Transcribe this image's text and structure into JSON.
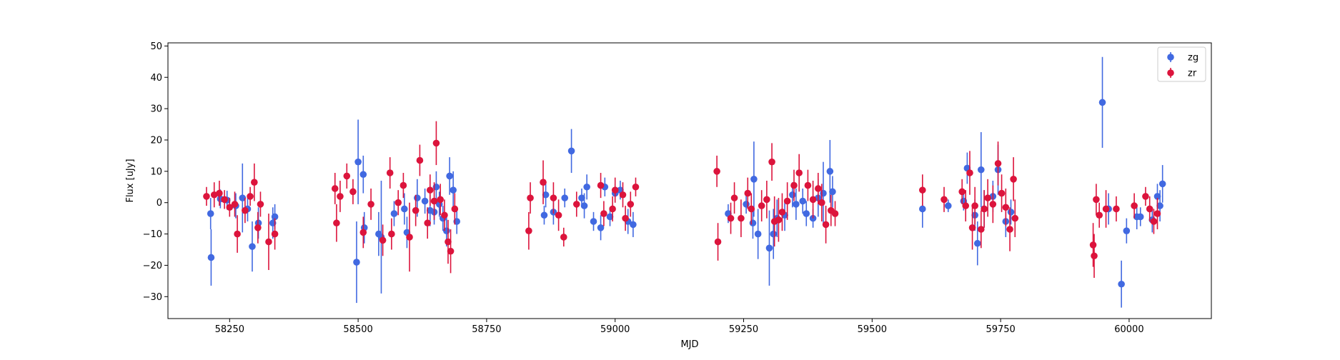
{
  "chart_data": {
    "type": "scatter",
    "title": "",
    "xlabel": "MJD",
    "ylabel": "Flux [uJy]",
    "xlim": [
      58130,
      60160
    ],
    "ylim": [
      -37,
      51
    ],
    "xticks": [
      58250,
      58500,
      58750,
      59000,
      59250,
      59500,
      59750,
      60000
    ],
    "yticks": [
      -30,
      -20,
      -10,
      0,
      10,
      20,
      30,
      40,
      50
    ],
    "grid": false,
    "legend_position": "top-right",
    "error_bars": true,
    "series": [
      {
        "name": "zg",
        "color": "#4169e1",
        "points": [
          [
            58213,
            -3.5,
            5
          ],
          [
            58214,
            -17.5,
            9
          ],
          [
            58232,
            1.2,
            3
          ],
          [
            58245,
            0.8,
            3
          ],
          [
            58262,
            -1.0,
            4
          ],
          [
            58275,
            1.5,
            11
          ],
          [
            58285,
            -2.0,
            4
          ],
          [
            58294,
            -14.0,
            8
          ],
          [
            58306,
            -6.5,
            5
          ],
          [
            58334,
            -6.5,
            5
          ],
          [
            58338,
            -4.5,
            4
          ],
          [
            58497,
            -19.0,
            13
          ],
          [
            58500,
            13.0,
            13.5
          ],
          [
            58510,
            9.0,
            6
          ],
          [
            58512,
            -8.0,
            5
          ],
          [
            58540,
            -10.0,
            7
          ],
          [
            58545,
            -11.0,
            18
          ],
          [
            58570,
            -3.5,
            4
          ],
          [
            58590,
            -2.0,
            5
          ],
          [
            58595,
            -9.5,
            5
          ],
          [
            58615,
            1.5,
            6
          ],
          [
            58630,
            0.5,
            4
          ],
          [
            58640,
            -2.5,
            5
          ],
          [
            58648,
            -3.0,
            4
          ],
          [
            58652,
            5.0,
            5
          ],
          [
            58658,
            -0.5,
            4
          ],
          [
            58665,
            -5.0,
            4
          ],
          [
            58672,
            -9.0,
            5
          ],
          [
            58678,
            8.5,
            6
          ],
          [
            58685,
            4.0,
            6
          ],
          [
            58692,
            -6.0,
            4
          ],
          [
            58862,
            -4.0,
            3
          ],
          [
            58865,
            2.5,
            4
          ],
          [
            58880,
            -3.0,
            4
          ],
          [
            58902,
            1.5,
            3
          ],
          [
            58915,
            16.5,
            7
          ],
          [
            58935,
            1.5,
            3
          ],
          [
            58940,
            -1.0,
            4
          ],
          [
            58945,
            5.0,
            4
          ],
          [
            58958,
            -6.0,
            3
          ],
          [
            58972,
            -8.0,
            4
          ],
          [
            58980,
            5.0,
            3
          ],
          [
            58990,
            -4.5,
            3
          ],
          [
            59000,
            3.0,
            3
          ],
          [
            59010,
            4.0,
            3
          ],
          [
            59025,
            -6.0,
            4
          ],
          [
            59035,
            -7.0,
            4
          ],
          [
            59220,
            -3.5,
            3
          ],
          [
            59255,
            -0.5,
            3
          ],
          [
            59268,
            -6.5,
            5
          ],
          [
            59270,
            7.5,
            12
          ],
          [
            59278,
            -10.0,
            8
          ],
          [
            59300,
            -14.5,
            12
          ],
          [
            59308,
            -10.0,
            8
          ],
          [
            59315,
            -5.0,
            6
          ],
          [
            59330,
            -4.0,
            5
          ],
          [
            59345,
            2.5,
            4
          ],
          [
            59352,
            -0.5,
            5
          ],
          [
            59365,
            0.5,
            4
          ],
          [
            59372,
            -3.5,
            4
          ],
          [
            59385,
            -5.0,
            3
          ],
          [
            59395,
            1.5,
            6
          ],
          [
            59405,
            3.0,
            10
          ],
          [
            59418,
            10.0,
            10
          ],
          [
            59423,
            3.5,
            5
          ],
          [
            59598,
            -2.0,
            6
          ],
          [
            59648,
            -1.0,
            2
          ],
          [
            59678,
            0.5,
            3
          ],
          [
            59685,
            11.0,
            5
          ],
          [
            59700,
            -4.0,
            5
          ],
          [
            59705,
            -13.0,
            7
          ],
          [
            59712,
            10.5,
            12
          ],
          [
            59718,
            -2.0,
            6
          ],
          [
            59735,
            2.0,
            5
          ],
          [
            59745,
            10.5,
            8
          ],
          [
            59760,
            -6.0,
            5
          ],
          [
            59770,
            -3.0,
            4
          ],
          [
            59948,
            32.0,
            14.5
          ],
          [
            59960,
            -2.0,
            5
          ],
          [
            59985,
            -26.0,
            7.5
          ],
          [
            59995,
            -9.0,
            4
          ],
          [
            60015,
            -4.5,
            4
          ],
          [
            60022,
            -4.5,
            3
          ],
          [
            60045,
            -5.5,
            4
          ],
          [
            60055,
            2.0,
            4
          ],
          [
            60060,
            -1.0,
            5
          ],
          [
            60065,
            6.0,
            6
          ]
        ]
      },
      {
        "name": "zr",
        "color": "#dc143c",
        "points": [
          [
            58205,
            2.0,
            3
          ],
          [
            58220,
            2.5,
            4
          ],
          [
            58230,
            3.0,
            4
          ],
          [
            58240,
            1.0,
            3
          ],
          [
            58250,
            -1.5,
            3
          ],
          [
            58260,
            -0.5,
            4
          ],
          [
            58265,
            -10.0,
            6
          ],
          [
            58280,
            -2.5,
            4
          ],
          [
            58290,
            2.0,
            3
          ],
          [
            58298,
            6.5,
            6
          ],
          [
            58305,
            -8.0,
            5
          ],
          [
            58310,
            -0.5,
            4
          ],
          [
            58326,
            -12.5,
            9
          ],
          [
            58338,
            -10.0,
            5
          ],
          [
            58455,
            4.5,
            5
          ],
          [
            58458,
            -6.5,
            6
          ],
          [
            58465,
            2.0,
            5
          ],
          [
            58478,
            8.5,
            4
          ],
          [
            58490,
            3.5,
            4
          ],
          [
            58510,
            -9.5,
            5
          ],
          [
            58525,
            -0.5,
            5
          ],
          [
            58548,
            -12.0,
            5
          ],
          [
            58562,
            9.5,
            5
          ],
          [
            58565,
            -10.0,
            5
          ],
          [
            58578,
            0.0,
            4
          ],
          [
            58588,
            5.5,
            4
          ],
          [
            58600,
            -11.0,
            11
          ],
          [
            58612,
            -2.5,
            5
          ],
          [
            58620,
            13.5,
            5
          ],
          [
            58635,
            -6.5,
            5
          ],
          [
            58640,
            4.0,
            5
          ],
          [
            58648,
            0.5,
            6
          ],
          [
            58652,
            19.0,
            7
          ],
          [
            58660,
            1.0,
            5
          ],
          [
            58668,
            -4.0,
            5
          ],
          [
            58675,
            -12.5,
            7
          ],
          [
            58680,
            -15.5,
            7
          ],
          [
            58688,
            -2.0,
            5
          ],
          [
            58832,
            -9.0,
            6
          ],
          [
            58835,
            1.5,
            5
          ],
          [
            58860,
            6.5,
            7
          ],
          [
            58880,
            1.5,
            5
          ],
          [
            58890,
            -4.0,
            5
          ],
          [
            58900,
            -11.0,
            3
          ],
          [
            58925,
            -0.5,
            4
          ],
          [
            58972,
            5.5,
            4
          ],
          [
            58978,
            -3.5,
            4
          ],
          [
            58995,
            -2.0,
            4
          ],
          [
            59000,
            4.0,
            4
          ],
          [
            59015,
            2.5,
            4
          ],
          [
            59020,
            -5.0,
            4
          ],
          [
            59030,
            -0.5,
            4
          ],
          [
            59040,
            5.0,
            3
          ],
          [
            59198,
            10.0,
            5
          ],
          [
            59200,
            -12.5,
            6
          ],
          [
            59225,
            -5.0,
            5
          ],
          [
            59232,
            1.5,
            5
          ],
          [
            59245,
            -5.0,
            6
          ],
          [
            59258,
            3.0,
            5
          ],
          [
            59265,
            -2.0,
            5
          ],
          [
            59285,
            -1.0,
            5
          ],
          [
            59295,
            1.0,
            6
          ],
          [
            59305,
            13.0,
            6
          ],
          [
            59310,
            -6.0,
            8
          ],
          [
            59318,
            -5.5,
            7
          ],
          [
            59325,
            -3.0,
            6
          ],
          [
            59335,
            0.5,
            6
          ],
          [
            59348,
            5.5,
            5
          ],
          [
            59358,
            9.5,
            6
          ],
          [
            59375,
            5.5,
            5
          ],
          [
            59385,
            1.0,
            6
          ],
          [
            59395,
            4.5,
            5
          ],
          [
            59402,
            0.0,
            6
          ],
          [
            59410,
            -7.0,
            6
          ],
          [
            59420,
            -2.5,
            5
          ],
          [
            59428,
            -3.5,
            4
          ],
          [
            59598,
            4.0,
            5
          ],
          [
            59640,
            1.0,
            4
          ],
          [
            59675,
            3.5,
            4
          ],
          [
            59682,
            -1.0,
            5
          ],
          [
            59690,
            9.5,
            7
          ],
          [
            59695,
            -8.0,
            7
          ],
          [
            59700,
            -1.0,
            6
          ],
          [
            59712,
            -8.5,
            6
          ],
          [
            59718,
            -2.0,
            6
          ],
          [
            59725,
            1.5,
            6
          ],
          [
            59735,
            -0.5,
            6
          ],
          [
            59745,
            12.5,
            7
          ],
          [
            59752,
            3.0,
            6
          ],
          [
            59760,
            -1.5,
            6
          ],
          [
            59768,
            -8.5,
            7
          ],
          [
            59775,
            7.5,
            7
          ],
          [
            59778,
            -5.0,
            6
          ],
          [
            59930,
            -13.5,
            7
          ],
          [
            59932,
            -17.0,
            7
          ],
          [
            59936,
            1.0,
            5
          ],
          [
            59942,
            -4.0,
            4
          ],
          [
            59955,
            -2.0,
            6
          ],
          [
            59975,
            -2.0,
            4
          ],
          [
            60010,
            -1.0,
            4
          ],
          [
            60032,
            2.0,
            3
          ],
          [
            60040,
            -2.0,
            4
          ],
          [
            60048,
            -6.0,
            4
          ],
          [
            60055,
            -3.5,
            5
          ]
        ]
      }
    ]
  }
}
